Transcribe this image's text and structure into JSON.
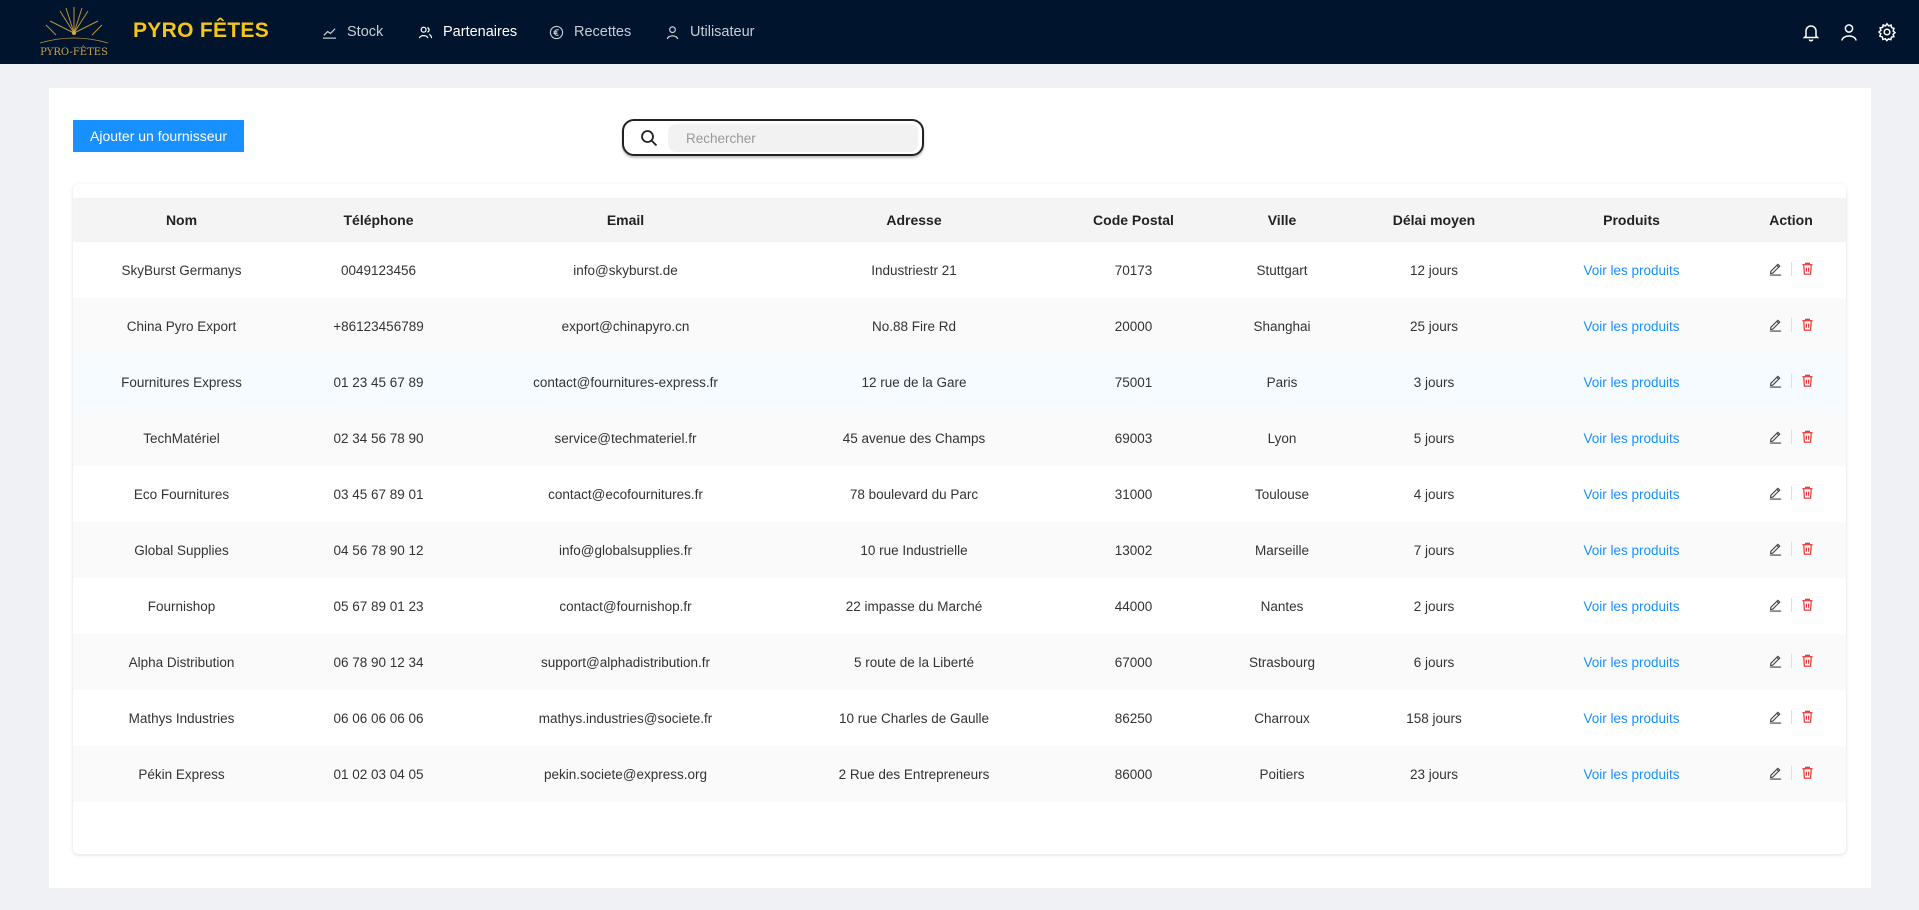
{
  "app": {
    "brand": "PYRO FÊTES",
    "logo_text": "PYRO-FÊTES"
  },
  "nav": {
    "items": [
      {
        "label": "Stock",
        "icon": "chart-line-icon"
      },
      {
        "label": "Partenaires",
        "icon": "users-icon"
      },
      {
        "label": "Recettes",
        "icon": "euro-icon"
      },
      {
        "label": "Utilisateur",
        "icon": "user-icon"
      }
    ],
    "active": "Partenaires",
    "right_icons": [
      "bell-icon",
      "user-icon",
      "gear-icon"
    ]
  },
  "toolbar": {
    "add_label": "Ajouter un fournisseur",
    "search_placeholder": "Rechercher",
    "search_value": ""
  },
  "table": {
    "headers": [
      "Nom",
      "Téléphone",
      "Email",
      "Adresse",
      "Code Postal",
      "Ville",
      "Délai moyen",
      "Produits",
      "Action"
    ],
    "rows": [
      {
        "nom": "SkyBurst Germanys",
        "tel": "0049123456",
        "email": "info@skyburst.de",
        "adresse": "Industriestr 21",
        "cp": "70173",
        "ville": "Stuttgart",
        "delai": "12 jours",
        "produits": "Voir les produits"
      },
      {
        "nom": "China Pyro Export",
        "tel": "+86123456789",
        "email": "export@chinapyro.cn",
        "adresse": "No.88 Fire Rd",
        "cp": "20000",
        "ville": "Shanghai",
        "delai": "25 jours",
        "produits": "Voir les produits"
      },
      {
        "nom": "Fournitures Express",
        "tel": "01 23 45 67 89",
        "email": "contact@fournitures-express.fr",
        "adresse": "12 rue de la Gare",
        "cp": "75001",
        "ville": "Paris",
        "delai": "3 jours",
        "produits": "Voir les produits"
      },
      {
        "nom": "TechMatériel",
        "tel": "02 34 56 78 90",
        "email": "service@techmateriel.fr",
        "adresse": "45 avenue des Champs",
        "cp": "69003",
        "ville": "Lyon",
        "delai": "5 jours",
        "produits": "Voir les produits"
      },
      {
        "nom": "Eco Fournitures",
        "tel": "03 45 67 89 01",
        "email": "contact@ecofournitures.fr",
        "adresse": "78 boulevard du Parc",
        "cp": "31000",
        "ville": "Toulouse",
        "delai": "4 jours",
        "produits": "Voir les produits"
      },
      {
        "nom": "Global Supplies",
        "tel": "04 56 78 90 12",
        "email": "info@globalsupplies.fr",
        "adresse": "10 rue Industrielle",
        "cp": "13002",
        "ville": "Marseille",
        "delai": "7 jours",
        "produits": "Voir les produits"
      },
      {
        "nom": "Fournishop",
        "tel": "05 67 89 01 23",
        "email": "contact@fournishop.fr",
        "adresse": "22 impasse du Marché",
        "cp": "44000",
        "ville": "Nantes",
        "delai": "2 jours",
        "produits": "Voir les produits"
      },
      {
        "nom": "Alpha Distribution",
        "tel": "06 78 90 12 34",
        "email": "support@alphadistribution.fr",
        "adresse": "5 route de la Liberté",
        "cp": "67000",
        "ville": "Strasbourg",
        "delai": "6 jours",
        "produits": "Voir les produits"
      },
      {
        "nom": "Mathys Industries",
        "tel": "06 06 06 06 06",
        "email": "mathys.industries@societe.fr",
        "adresse": "10 rue Charles de Gaulle",
        "cp": "86250",
        "ville": "Charroux",
        "delai": "158 jours",
        "produits": "Voir les produits"
      },
      {
        "nom": "Pékin Express",
        "tel": "01 02 03 04 05",
        "email": "pekin.societe@express.org",
        "adresse": "2 Rue des Entrepreneurs",
        "cp": "86000",
        "ville": "Poitiers",
        "delai": "23 jours",
        "produits": "Voir les produits"
      }
    ]
  },
  "colors": {
    "navbar": "#00142e",
    "brand": "#f5c518",
    "primary": "#1890ff",
    "delete": "#e53935"
  }
}
